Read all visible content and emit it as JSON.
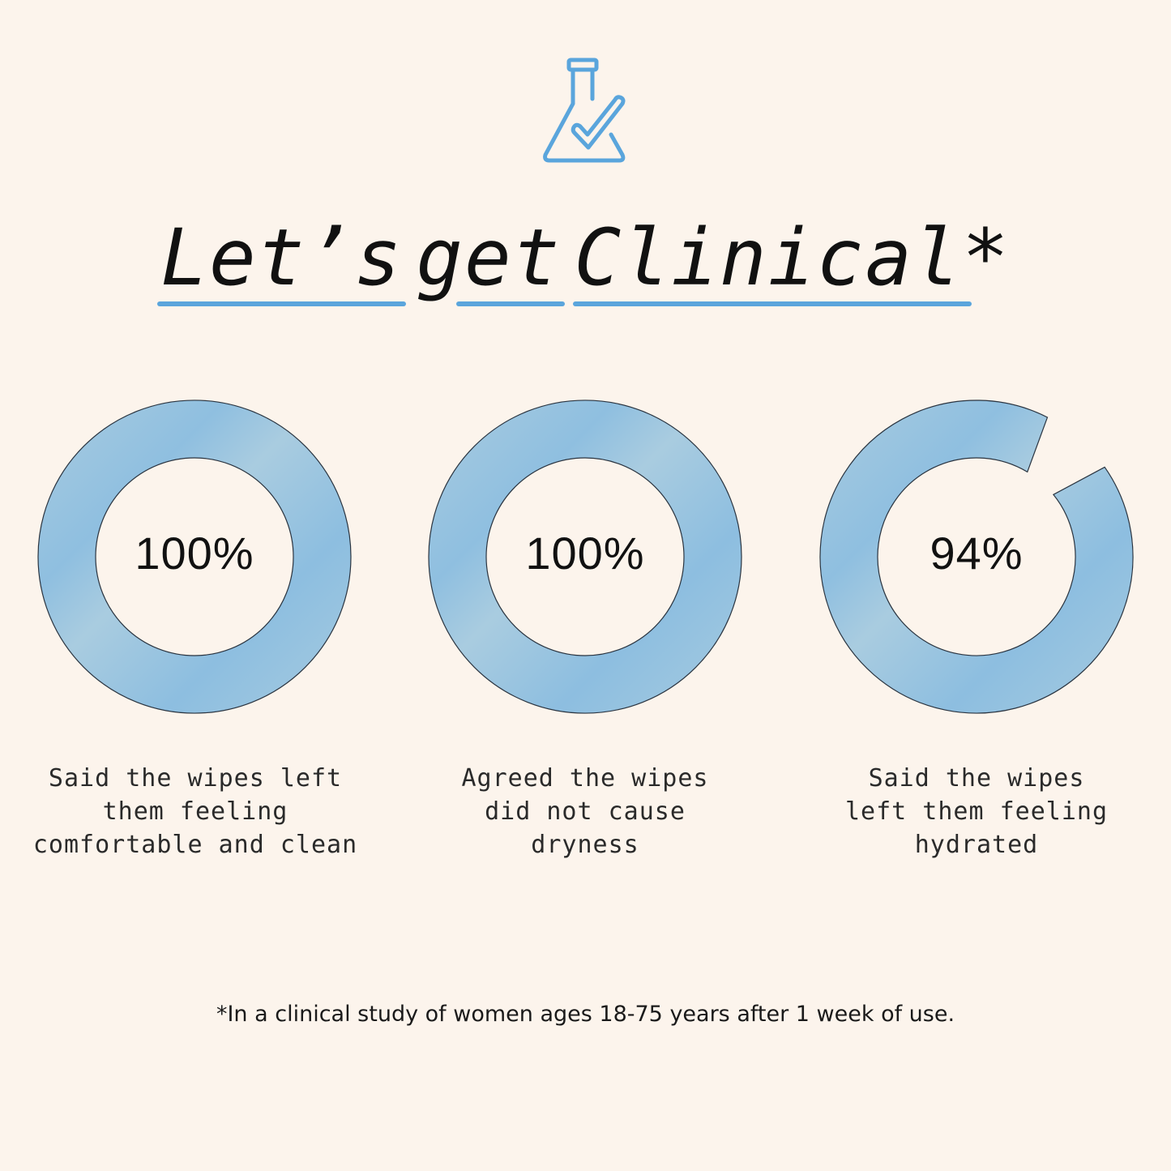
{
  "header": {
    "icon": "flask-check-icon",
    "title_words": [
      "Let’s",
      "get",
      "Clinical*"
    ]
  },
  "accent_color": "#5aa5dc",
  "ring_color": "#a6cbe0",
  "stats": [
    {
      "value": 100,
      "label": "100%",
      "caption": [
        "Said the wipes left",
        "them feeling",
        "comfortable and clean"
      ]
    },
    {
      "value": 100,
      "label": "100%",
      "caption": [
        "Agreed the wipes",
        "did not cause",
        "dryness"
      ]
    },
    {
      "value": 94,
      "label": "94%",
      "caption": [
        "Said the wipes",
        "left them feeling",
        "hydrated"
      ]
    }
  ],
  "footnote": "*In a clinical study of women ages 18-75 years after 1 week of use."
}
